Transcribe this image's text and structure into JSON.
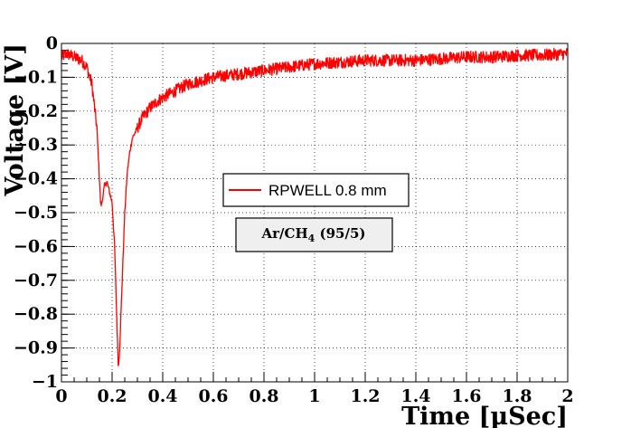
{
  "chart_data": {
    "type": "line",
    "title": "",
    "xlabel": "Time [µSec]",
    "ylabel": "Voltage [V]",
    "xlim": [
      0,
      2
    ],
    "ylim": [
      -1,
      0
    ],
    "grid": true,
    "x_ticks": [
      0,
      0.2,
      0.4,
      0.6,
      0.8,
      1,
      1.2,
      1.4,
      1.6,
      1.8,
      2
    ],
    "x_tick_labels": [
      "0",
      "0.2",
      "0.4",
      "0.6",
      "0.8",
      "1",
      "1.2",
      "1.4",
      "1.6",
      "1.8",
      "2"
    ],
    "y_ticks": [
      0,
      -0.1,
      -0.2,
      -0.3,
      -0.4,
      -0.5,
      -0.6,
      -0.7,
      -0.8,
      -0.9,
      -1
    ],
    "y_tick_labels": [
      "0",
      "−0.1",
      "−0.2",
      "−0.3",
      "−0.4",
      "−0.5",
      "−0.6",
      "−0.7",
      "−0.8",
      "−0.9",
      "−1"
    ],
    "legend": {
      "position": "center",
      "entries": [
        {
          "label": "RPWELL 0.8 mm",
          "color": "#ff0000"
        }
      ]
    },
    "annotation": {
      "text_base": "Ar/CH",
      "text_sub": "4",
      "text_suffix": " (95/5)"
    },
    "series": [
      {
        "name": "RPWELL 0.8 mm",
        "color": "#ff0000",
        "x": [
          0,
          0.02,
          0.05,
          0.08,
          0.1,
          0.12,
          0.14,
          0.15,
          0.155,
          0.16,
          0.17,
          0.18,
          0.19,
          0.2,
          0.21,
          0.22,
          0.225,
          0.23,
          0.24,
          0.25,
          0.26,
          0.27,
          0.28,
          0.3,
          0.32,
          0.35,
          0.38,
          0.4,
          0.45,
          0.5,
          0.55,
          0.6,
          0.7,
          0.8,
          0.9,
          1,
          1.1,
          1.2,
          1.3,
          1.4,
          1.5,
          1.6,
          1.7,
          1.8,
          1.9,
          2
        ],
        "y": [
          -0.04,
          -0.03,
          -0.04,
          -0.05,
          -0.07,
          -0.12,
          -0.25,
          -0.4,
          -0.48,
          -0.47,
          -0.42,
          -0.41,
          -0.44,
          -0.47,
          -0.6,
          -0.85,
          -0.96,
          -0.9,
          -0.7,
          -0.5,
          -0.38,
          -0.32,
          -0.28,
          -0.25,
          -0.22,
          -0.19,
          -0.17,
          -0.16,
          -0.14,
          -0.12,
          -0.11,
          -0.1,
          -0.09,
          -0.08,
          -0.07,
          -0.06,
          -0.055,
          -0.05,
          -0.05,
          -0.05,
          -0.045,
          -0.04,
          -0.04,
          -0.035,
          -0.035,
          -0.03
        ]
      }
    ]
  }
}
